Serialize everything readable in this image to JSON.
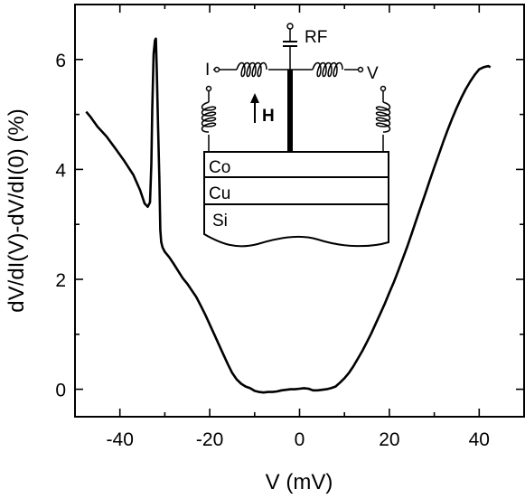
{
  "chart_data": {
    "type": "line",
    "xlabel": "V (mV)",
    "ylabel": "dV/dI(V)-dV/dI(0) (%)",
    "xlim": [
      -50,
      50
    ],
    "ylim": [
      -0.5,
      7
    ],
    "xticks": [
      -40,
      -20,
      0,
      20,
      40
    ],
    "yticks": [
      0,
      2,
      4,
      6
    ],
    "grid": false,
    "series": [
      {
        "x": [
          -47.5,
          -46.5,
          -45,
          -43,
          -41,
          -39,
          -37,
          -35.5,
          -34.5,
          -33.8,
          -33.3,
          -33,
          -32.8,
          -32.5,
          -32.2,
          -32,
          -31.8,
          -31.5,
          -31.2,
          -31,
          -30.8,
          -30.5,
          -30,
          -29,
          -28,
          -27,
          -26,
          -25,
          -24,
          -23,
          -22,
          -21,
          -20,
          -19,
          -18,
          -17,
          -16,
          -15,
          -14,
          -13,
          -12,
          -11,
          -10,
          -9,
          -8,
          -7,
          -6,
          -5,
          -4,
          -3,
          -2,
          -1,
          0,
          1,
          2,
          3,
          4,
          5,
          6,
          7,
          8,
          9,
          10,
          11,
          12,
          13,
          14,
          15,
          16,
          17,
          18,
          19,
          20,
          21,
          22,
          23,
          24,
          25,
          26,
          27,
          28,
          29,
          30,
          31,
          32,
          33,
          34,
          35,
          36,
          37,
          38,
          39,
          40,
          41,
          42,
          42.5
        ],
        "y": [
          5.05,
          4.95,
          4.78,
          4.6,
          4.38,
          4.15,
          3.9,
          3.62,
          3.38,
          3.32,
          3.4,
          4.1,
          5.1,
          6.1,
          6.35,
          6.38,
          5.8,
          4.8,
          3.8,
          2.9,
          2.68,
          2.58,
          2.5,
          2.4,
          2.28,
          2.15,
          2.02,
          1.92,
          1.8,
          1.68,
          1.52,
          1.36,
          1.18,
          1.0,
          0.82,
          0.64,
          0.46,
          0.3,
          0.18,
          0.1,
          0.05,
          0.02,
          -0.03,
          -0.05,
          -0.06,
          -0.05,
          -0.05,
          -0.04,
          -0.02,
          -0.01,
          0.0,
          0.0,
          0.01,
          0.02,
          0.01,
          -0.02,
          -0.02,
          -0.01,
          0.0,
          0.02,
          0.05,
          0.12,
          0.2,
          0.3,
          0.42,
          0.56,
          0.7,
          0.86,
          1.02,
          1.2,
          1.38,
          1.56,
          1.76,
          1.95,
          2.16,
          2.38,
          2.6,
          2.84,
          3.08,
          3.32,
          3.56,
          3.8,
          4.04,
          4.27,
          4.5,
          4.72,
          4.93,
          5.12,
          5.3,
          5.46,
          5.6,
          5.72,
          5.82,
          5.86,
          5.88,
          5.86
        ]
      }
    ]
  },
  "inset": {
    "rf_label": "RF",
    "current_label": "I",
    "voltage_label": "V",
    "field_label": "H",
    "layers": [
      "Co",
      "Cu",
      "Si"
    ]
  }
}
